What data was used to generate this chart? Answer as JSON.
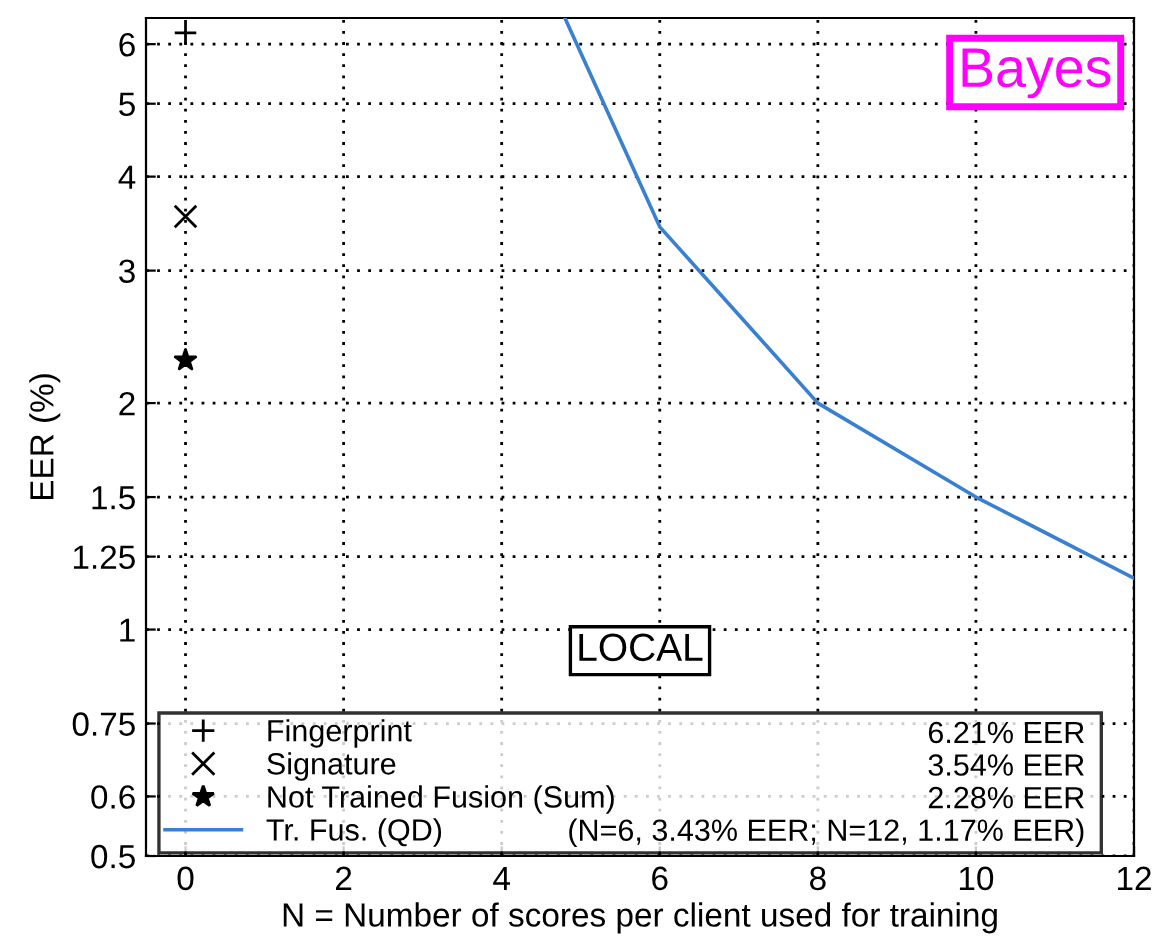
{
  "chart_data": {
    "type": "line",
    "xlabel": "N = Number of scores per client used for training",
    "ylabel": "EER (%)",
    "series": [
      {
        "name": "Fingerprint",
        "type": "scatter",
        "color": "#000000",
        "marker": "plus",
        "x": [
          0
        ],
        "values": [
          6.21
        ]
      },
      {
        "name": "Signature",
        "type": "scatter",
        "color": "#000000",
        "marker": "cross",
        "x": [
          0
        ],
        "values": [
          3.54
        ]
      },
      {
        "name": "Not Trained Fusion (Sum)",
        "type": "scatter",
        "color": "#000000",
        "marker": "star",
        "x": [
          0
        ],
        "values": [
          2.28
        ]
      },
      {
        "name": "Tr. Fus. (QD)",
        "color": "#3a80d0",
        "marker": "none",
        "x": [
          4.8,
          6,
          8,
          10,
          12
        ],
        "values": [
          6.5,
          3.43,
          2.0,
          1.5,
          1.17
        ]
      }
    ],
    "annotations": [
      "6.21% EER",
      "3.54% EER",
      "2.28% EER",
      "(N=6, 3.43% EER; N=12, 1.17% EER)",
      "LOCAL",
      "Bayes"
    ],
    "log": "y",
    "xlim": [
      -0.5,
      12
    ],
    "ylim": [
      0.5,
      6.5
    ],
    "xticks": [
      0,
      2,
      4,
      6,
      8,
      10,
      12
    ],
    "yticks": [
      0.5,
      0.6,
      0.75,
      1,
      1.25,
      1.5,
      2,
      3,
      4,
      5,
      6
    ],
    "grid": true,
    "legend": "bottom"
  }
}
